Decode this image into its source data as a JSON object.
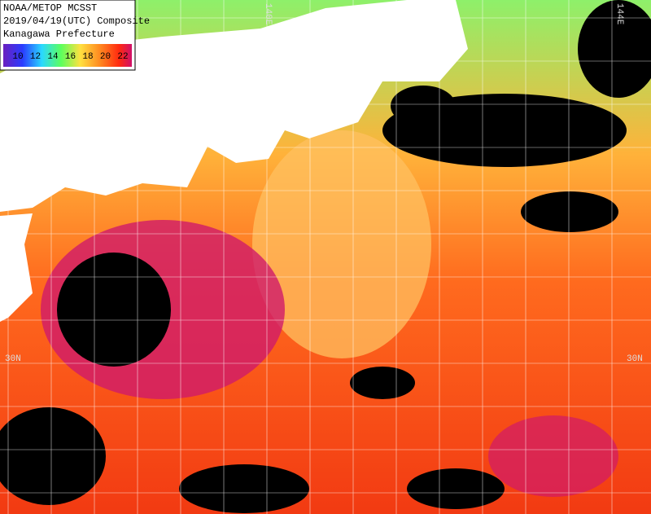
{
  "header": {
    "lines": [
      "NOAA/METOP MCSST",
      "2019/04/19(UTC) Composite",
      "Kanagawa Prefecture"
    ]
  },
  "colorbar": {
    "ticks": [
      10,
      12,
      14,
      16,
      18,
      20,
      22
    ]
  },
  "grid_labels": {
    "top": [
      "140E",
      "144E"
    ],
    "left": "30N",
    "right": "30N"
  }
}
